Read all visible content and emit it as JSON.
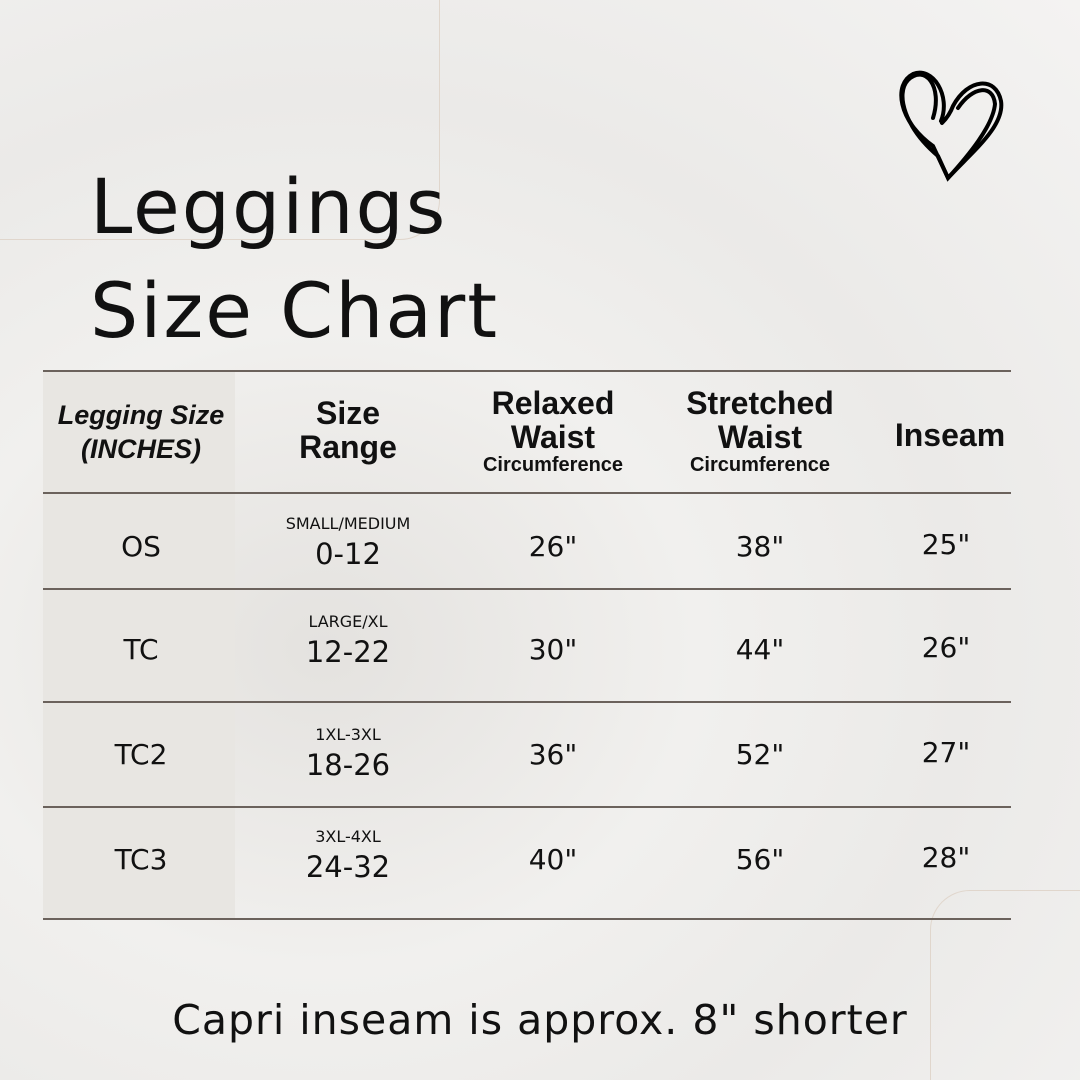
{
  "title": {
    "line1": "Leggings",
    "line2": "Size Chart"
  },
  "headers": {
    "size": "Legging Size",
    "size_sub": "(INCHES)",
    "range1": "Size",
    "range2": "Range",
    "relaxed1": "Relaxed",
    "relaxed2": "Waist",
    "relaxed_sub": "Circumference",
    "stretched1": "Stretched",
    "stretched2": "Waist",
    "stretched_sub": "Circumference",
    "inseam": "Inseam"
  },
  "rows": [
    {
      "size": "OS",
      "range_label": "SMALL/MEDIUM",
      "range": "0-12",
      "relaxed": "26\"",
      "stretched": "38\"",
      "inseam": "25\""
    },
    {
      "size": "TC",
      "range_label": "LARGE/XL",
      "range": "12-22",
      "relaxed": "30\"",
      "stretched": "44\"",
      "inseam": "26\""
    },
    {
      "size": "TC2",
      "range_label": "1XL-3XL",
      "range": "18-26",
      "relaxed": "36\"",
      "stretched": "52\"",
      "inseam": "27\""
    },
    {
      "size": "TC3",
      "range_label": "3XL-4XL",
      "range": "24-32",
      "relaxed": "40\"",
      "stretched": "56\"",
      "inseam": "28\""
    }
  ],
  "footer": "Capri inseam is approx. 8\" shorter",
  "icons": {
    "heart": "heart-icon"
  }
}
